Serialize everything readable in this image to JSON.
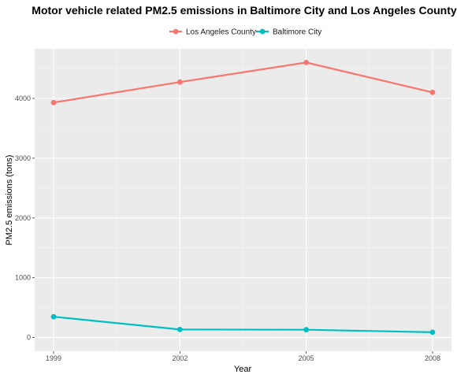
{
  "chart_data": {
    "type": "line",
    "title": "Motor vehicle related PM2.5 emissions in Baltimore City and Los Angeles County",
    "xlabel": "Year",
    "ylabel": "PM2.5 emissions (tons)",
    "x": [
      1999,
      2002,
      2005,
      2008
    ],
    "xlim": [
      1999,
      2008
    ],
    "ylim": [
      0,
      4830
    ],
    "yticks": [
      0,
      1000,
      2000,
      3000,
      4000
    ],
    "grid": true,
    "legend_position": "top",
    "series": [
      {
        "name": "Los Angeles County",
        "color": "#F8766D",
        "values": [
          3931,
          4274,
          4601,
          4101
        ]
      },
      {
        "name": "Baltimore City",
        "color": "#00BFC4",
        "values": [
          347,
          134,
          130,
          88
        ]
      }
    ]
  }
}
